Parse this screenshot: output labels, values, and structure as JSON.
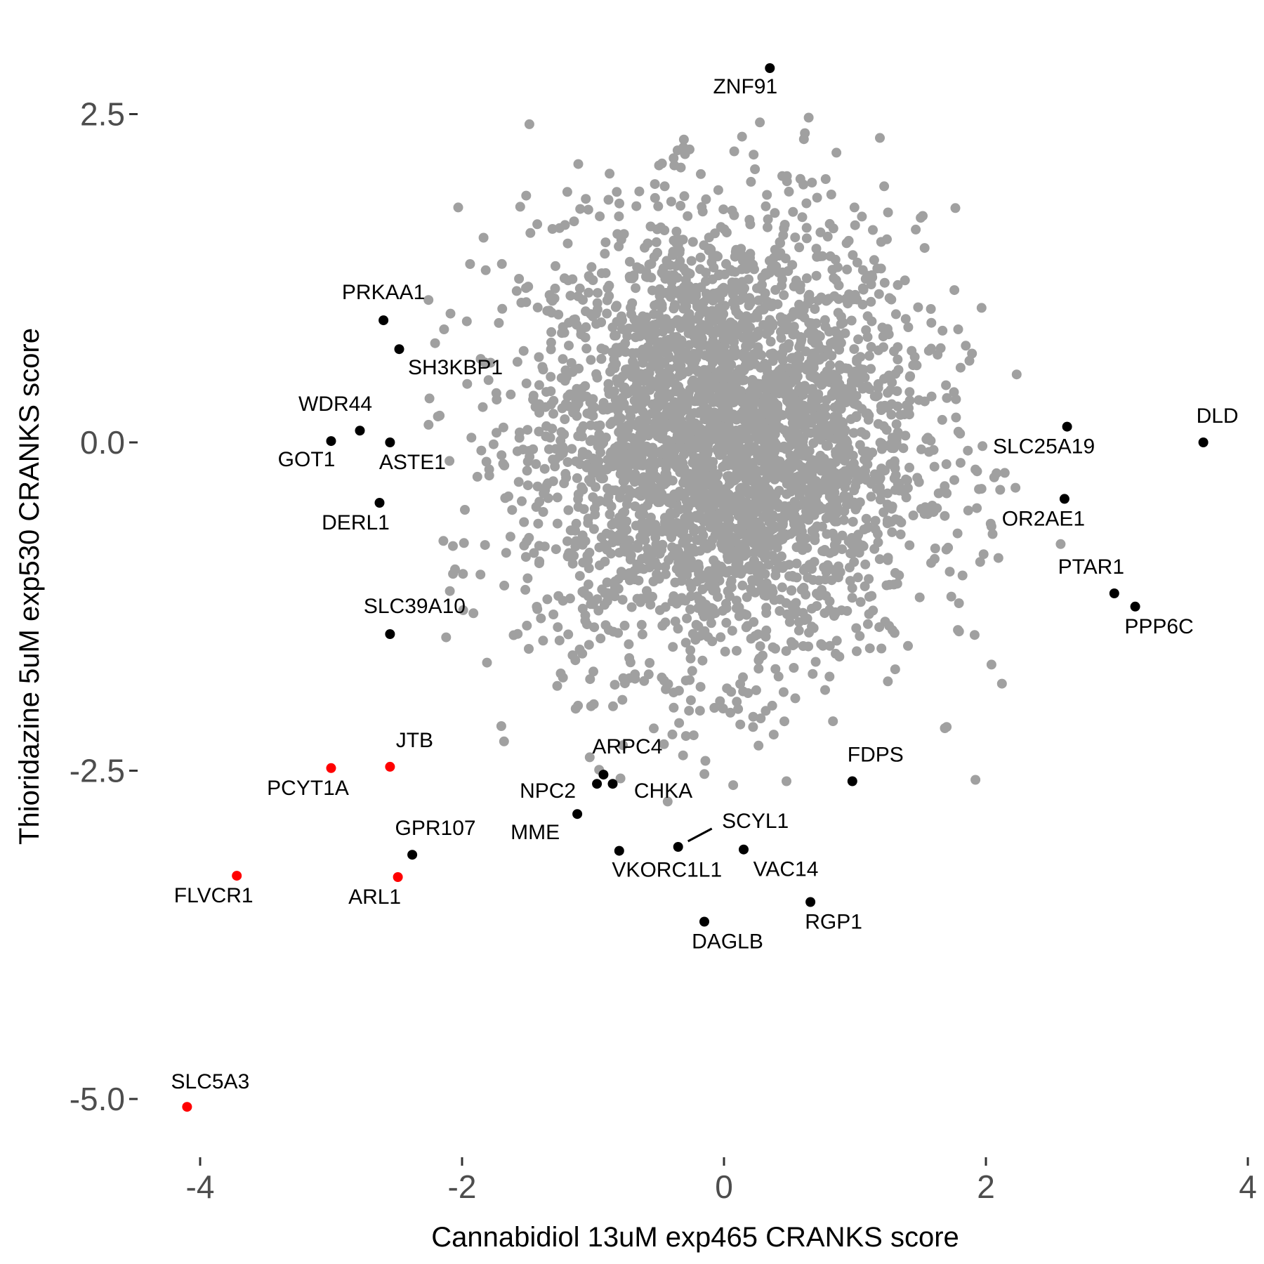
{
  "chart_data": {
    "type": "scatter",
    "xlabel": "Cannabidiol 13uM exp465 CRANKS score",
    "ylabel": "Thioridazine 5uM exp530 CRANKS score",
    "xlim": [
      -4.4,
      4.0
    ],
    "ylim": [
      -5.6,
      3.0
    ],
    "x_ticks": [
      -4,
      -2,
      0,
      2,
      4
    ],
    "x_tick_labels": [
      "-4",
      "-2",
      "0",
      "2",
      "4"
    ],
    "y_ticks": [
      2.5,
      0.0,
      -2.5,
      -5.0
    ],
    "y_tick_labels": [
      "2.5",
      "0.0",
      "-2.5",
      "-5.0"
    ],
    "grid": false,
    "background_cloud": {
      "description_color": "#a0a0a0",
      "n_points": 3500,
      "center": [
        0.0,
        0.0
      ],
      "sd_x": 0.75,
      "sd_y": 0.85
    },
    "colors": {
      "background": "#a0a0a0",
      "labeled": "#000000",
      "highlight": "#ff0000"
    },
    "labeled_points": [
      {
        "gene": "ZNF91",
        "x": 0.35,
        "y": 2.85,
        "color": "#000000"
      },
      {
        "gene": "PRKAA1",
        "x": -2.6,
        "y": 0.93,
        "color": "#000000"
      },
      {
        "gene": "SH3KBP1",
        "x": -2.48,
        "y": 0.71,
        "color": "#000000"
      },
      {
        "gene": "WDR44",
        "x": -2.78,
        "y": 0.09,
        "color": "#000000"
      },
      {
        "gene": "GOT1",
        "x": -3.0,
        "y": 0.01,
        "color": "#000000"
      },
      {
        "gene": "ASTE1",
        "x": -2.55,
        "y": 0.0,
        "color": "#000000"
      },
      {
        "gene": "DERL1",
        "x": -2.63,
        "y": -0.46,
        "color": "#000000"
      },
      {
        "gene": "SLC39A10",
        "x": -2.55,
        "y": -1.46,
        "color": "#000000"
      },
      {
        "gene": "DLD",
        "x": 3.66,
        "y": 0.0,
        "color": "#000000"
      },
      {
        "gene": "SLC25A19",
        "x": 2.62,
        "y": 0.12,
        "color": "#000000"
      },
      {
        "gene": "OR2AE1",
        "x": 2.6,
        "y": -0.43,
        "color": "#000000"
      },
      {
        "gene": "PTAR1",
        "x": 2.98,
        "y": -1.15,
        "color": "#000000"
      },
      {
        "gene": "PPP6C",
        "x": 3.14,
        "y": -1.25,
        "color": "#000000"
      },
      {
        "gene": "FDPS",
        "x": 0.98,
        "y": -2.58,
        "color": "#000000"
      },
      {
        "gene": "ARPC4",
        "x": -0.92,
        "y": -2.53,
        "color": "#000000"
      },
      {
        "gene": "NPC2",
        "x": -0.97,
        "y": -2.6,
        "color": "#000000"
      },
      {
        "gene": "CHKA",
        "x": -0.85,
        "y": -2.6,
        "color": "#000000"
      },
      {
        "gene": "MME",
        "x": -1.12,
        "y": -2.83,
        "color": "#000000"
      },
      {
        "gene": "SCYL1",
        "x": -0.35,
        "y": -3.08,
        "color": "#000000"
      },
      {
        "gene": "VKORC1L1",
        "x": -0.8,
        "y": -3.11,
        "color": "#000000"
      },
      {
        "gene": "VAC14",
        "x": 0.15,
        "y": -3.1,
        "color": "#000000"
      },
      {
        "gene": "RGP1",
        "x": 0.66,
        "y": -3.5,
        "color": "#000000"
      },
      {
        "gene": "DAGLB",
        "x": -0.15,
        "y": -3.65,
        "color": "#000000"
      },
      {
        "gene": "GPR107",
        "x": -2.38,
        "y": -3.14,
        "color": "#000000"
      },
      {
        "gene": "JTB",
        "x": -2.55,
        "y": -2.47,
        "color": "#ff0000"
      },
      {
        "gene": "PCYT1A",
        "x": -3.0,
        "y": -2.48,
        "color": "#ff0000"
      },
      {
        "gene": "FLVCR1",
        "x": -3.72,
        "y": -3.3,
        "color": "#ff0000"
      },
      {
        "gene": "ARL1",
        "x": -2.49,
        "y": -3.31,
        "color": "#ff0000"
      },
      {
        "gene": "SLC5A3",
        "x": -4.1,
        "y": -5.06,
        "color": "#ff0000"
      }
    ]
  }
}
